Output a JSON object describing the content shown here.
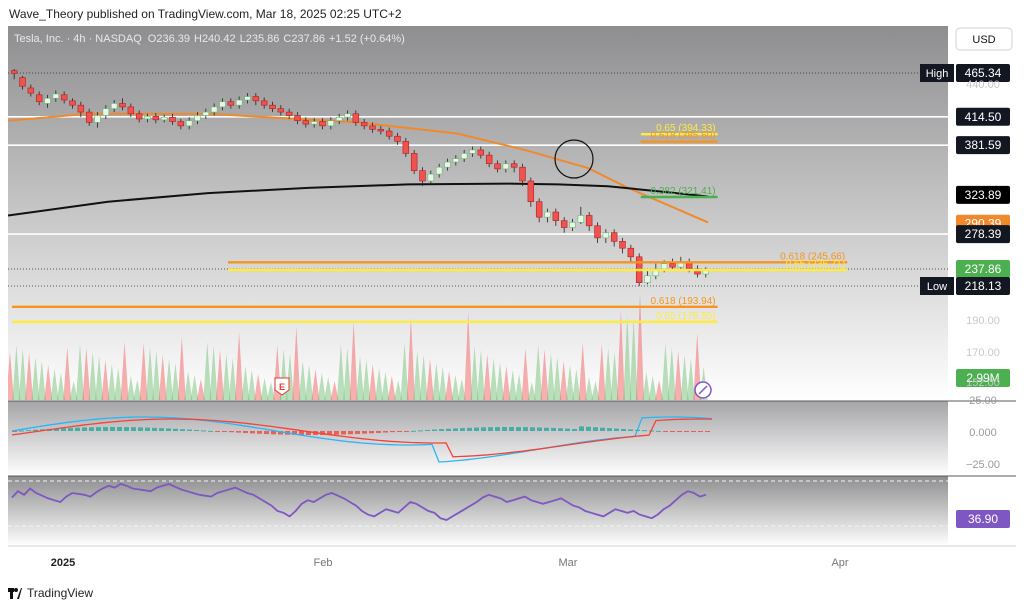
{
  "header": {
    "published": "Wave_Theory published on TradingView.com, Mar 18, 2025 02:25 UTC+2"
  },
  "legend": {
    "symbol": "Tesla, Inc. · 4h · NASDAQ",
    "open_label": "O",
    "open": "236.39",
    "high_label": "H",
    "high": "240.42",
    "low_label": "L",
    "low": "235.86",
    "close_label": "C",
    "close": "237.86",
    "change": "+1.52 (+0.64%)"
  },
  "currency_button": "USD",
  "footer": {
    "brand": "TradingView"
  },
  "colors": {
    "background_top": "#8e8e90",
    "background_bottom": "#ffffff",
    "up": "#66bb6a",
    "down": "#ef5350",
    "ma_fast": "#f0892c",
    "ma_slow": "#111111",
    "fib_orange": "#f7941d",
    "fib_yellow": "#ffeb3b",
    "rsi": "#7e57c2",
    "macd": "#f44336",
    "signal": "#29b6f6"
  },
  "chart_data": {
    "type": "candlestick",
    "title": "Tesla, Inc. · 4h · NASDAQ",
    "x_tick_labels": [
      "2025",
      "Feb",
      "Mar",
      "Apr"
    ],
    "price_axis_labels": [
      "440.00",
      "190.00",
      "170.00",
      "152.00"
    ],
    "price_badges": [
      {
        "label": "High",
        "value": "465.34",
        "style": "dark"
      },
      {
        "label": "",
        "value": "414.50",
        "style": "dark"
      },
      {
        "label": "",
        "value": "381.59",
        "style": "dark"
      },
      {
        "label": "",
        "value": "323.89",
        "style": "black"
      },
      {
        "label": "",
        "value": "290.39",
        "style": "orange"
      },
      {
        "label": "",
        "value": "278.39",
        "style": "dark"
      },
      {
        "label": "",
        "value": "237.86",
        "style": "green"
      },
      {
        "label": "Low",
        "value": "218.13",
        "style": "dark"
      }
    ],
    "horizontal_levels": [
      {
        "price": 414.5,
        "color": "#ffffff"
      },
      {
        "price": 381.59,
        "color": "#ffffff"
      },
      {
        "price": 278.39,
        "color": "#ffffff"
      }
    ],
    "fib_levels": [
      {
        "label": "0.65 (394.33)",
        "price": 394.33,
        "color": "#ffeb3b",
        "range": [
          0.655,
          0.735
        ]
      },
      {
        "label": "0.618 (385.60)",
        "price": 385.6,
        "color": "#f7941d",
        "range": [
          0.655,
          0.735
        ]
      },
      {
        "label": "0.382 (321.41)",
        "price": 321.41,
        "color": "#4caf50",
        "range": [
          0.655,
          0.735
        ]
      },
      {
        "label": "0.618 (245.66)",
        "price": 245.66,
        "color": "#f7941d",
        "range": [
          0.225,
          0.87
        ]
      },
      {
        "label": "0.65 (236.71)",
        "price": 236.71,
        "color": "#ffeb3b",
        "range": [
          0.225,
          0.87
        ]
      },
      {
        "label": "0.618 (193.94)",
        "price": 193.94,
        "color": "#f7941d",
        "range": [
          0.0,
          0.735
        ]
      },
      {
        "label": "0.65 (176.55)",
        "price": 176.55,
        "color": "#ffeb3b",
        "range": [
          0.0,
          0.735
        ]
      }
    ],
    "candles": [
      [
        468,
        465,
        470,
        458
      ],
      [
        460,
        450,
        462,
        446
      ],
      [
        448,
        442,
        452,
        438
      ],
      [
        440,
        432,
        444,
        428
      ],
      [
        430,
        436,
        440,
        425
      ],
      [
        436,
        441,
        445,
        432
      ],
      [
        440,
        434,
        444,
        430
      ],
      [
        433,
        428,
        436,
        424
      ],
      [
        428,
        420,
        432,
        414
      ],
      [
        420,
        408,
        424,
        404
      ],
      [
        408,
        416,
        420,
        402
      ],
      [
        416,
        424,
        428,
        412
      ],
      [
        424,
        430,
        434,
        420
      ],
      [
        430,
        426,
        436,
        422
      ],
      [
        426,
        418,
        430,
        414
      ],
      [
        418,
        412,
        422,
        408
      ],
      [
        412,
        415,
        418,
        408
      ],
      [
        415,
        411,
        419,
        407
      ],
      [
        411,
        414,
        417,
        408
      ],
      [
        414,
        409,
        418,
        405
      ],
      [
        409,
        404,
        412,
        400
      ],
      [
        404,
        410,
        414,
        400
      ],
      [
        410,
        416,
        420,
        406
      ],
      [
        416,
        420,
        424,
        412
      ],
      [
        420,
        426,
        430,
        416
      ],
      [
        426,
        432,
        436,
        422
      ],
      [
        432,
        428,
        436,
        424
      ],
      [
        428,
        434,
        438,
        424
      ],
      [
        434,
        438,
        442,
        430
      ],
      [
        438,
        433,
        442,
        428
      ],
      [
        433,
        428,
        437,
        424
      ],
      [
        428,
        424,
        432,
        420
      ],
      [
        424,
        420,
        428,
        416
      ],
      [
        420,
        416,
        424,
        412
      ],
      [
        416,
        410,
        420,
        406
      ],
      [
        410,
        406,
        414,
        402
      ],
      [
        406,
        409,
        413,
        402
      ],
      [
        409,
        404,
        413,
        400
      ],
      [
        404,
        410,
        414,
        400
      ],
      [
        410,
        414,
        418,
        406
      ],
      [
        414,
        418,
        422,
        410
      ],
      [
        418,
        408,
        422,
        404
      ],
      [
        408,
        404,
        412,
        400
      ],
      [
        404,
        400,
        408,
        396
      ],
      [
        400,
        398,
        404,
        394
      ],
      [
        398,
        392,
        402,
        388
      ],
      [
        392,
        386,
        396,
        382
      ],
      [
        386,
        372,
        390,
        368
      ],
      [
        372,
        352,
        376,
        348
      ],
      [
        352,
        340,
        356,
        334
      ],
      [
        340,
        348,
        352,
        336
      ],
      [
        348,
        356,
        360,
        344
      ],
      [
        356,
        362,
        366,
        352
      ],
      [
        362,
        366,
        370,
        358
      ],
      [
        366,
        372,
        376,
        362
      ],
      [
        372,
        376,
        380,
        368
      ],
      [
        376,
        370,
        380,
        366
      ],
      [
        370,
        360,
        374,
        356
      ],
      [
        360,
        354,
        364,
        350
      ],
      [
        354,
        360,
        364,
        350
      ],
      [
        360,
        356,
        364,
        350
      ],
      [
        356,
        340,
        360,
        334
      ],
      [
        340,
        316,
        344,
        310
      ],
      [
        316,
        298,
        320,
        292
      ],
      [
        298,
        304,
        308,
        292
      ],
      [
        304,
        294,
        308,
        288
      ],
      [
        294,
        286,
        298,
        280
      ],
      [
        286,
        292,
        296,
        282
      ],
      [
        292,
        300,
        310,
        290
      ],
      [
        300,
        288,
        304,
        282
      ],
      [
        288,
        274,
        292,
        268
      ],
      [
        274,
        280,
        284,
        268
      ],
      [
        280,
        270,
        284,
        264
      ],
      [
        270,
        262,
        274,
        256
      ],
      [
        262,
        252,
        266,
        246
      ],
      [
        252,
        222,
        256,
        218
      ],
      [
        222,
        230,
        236,
        220
      ],
      [
        230,
        238,
        244,
        226
      ],
      [
        238,
        244,
        248,
        234
      ],
      [
        244,
        240,
        250,
        236
      ],
      [
        240,
        246,
        252,
        236
      ],
      [
        246,
        238,
        250,
        234
      ],
      [
        238,
        232,
        242,
        228
      ],
      [
        232,
        236,
        240,
        228
      ]
    ],
    "moving_averages": [
      {
        "name": "",
        "color": "#f0892c",
        "points": [
          [
            0,
            410
          ],
          [
            0.08,
            418
          ],
          [
            0.2,
            418
          ],
          [
            0.35,
            408
          ],
          [
            0.45,
            395
          ],
          [
            0.52,
            375
          ],
          [
            0.58,
            355
          ],
          [
            0.62,
            332
          ],
          [
            0.66,
            312
          ],
          [
            0.7,
            292
          ]
        ]
      },
      {
        "name": "",
        "color": "#111111",
        "points": [
          [
            0,
            300
          ],
          [
            0.1,
            316
          ],
          [
            0.2,
            326
          ],
          [
            0.3,
            332
          ],
          [
            0.4,
            336
          ],
          [
            0.5,
            337
          ],
          [
            0.55,
            336
          ],
          [
            0.6,
            334
          ],
          [
            0.65,
            328
          ],
          [
            0.7,
            322
          ]
        ]
      }
    ],
    "volume": {
      "label": "2.99M",
      "axis_labels": [
        "190.00",
        "170.00",
        "152.00"
      ]
    },
    "macd": {
      "axis_labels": [
        "25.00",
        "0.000",
        "−25.00"
      ]
    },
    "rsi": {
      "value": "36.90",
      "points": [
        45,
        52,
        48,
        55,
        50,
        47,
        44,
        42,
        40,
        46,
        50,
        49,
        48,
        46,
        51,
        55,
        58,
        56,
        60,
        58,
        55,
        54,
        53,
        52,
        56,
        58,
        60,
        57,
        54,
        52,
        50,
        48,
        47,
        46,
        50,
        52,
        54,
        56,
        53,
        50,
        48,
        44,
        40,
        36,
        30,
        28,
        24,
        30,
        38,
        42,
        40,
        44,
        48,
        50,
        47,
        44,
        40,
        36,
        30,
        26,
        24,
        28,
        32,
        30,
        28,
        34,
        40,
        38,
        34,
        30,
        28,
        22,
        20,
        24,
        28,
        32,
        36,
        40,
        45,
        48,
        46,
        44,
        40,
        42,
        44,
        46,
        42,
        40,
        38,
        40,
        42,
        44,
        40,
        36,
        34,
        30,
        28,
        26,
        24,
        28,
        32,
        30,
        28,
        30,
        26,
        24,
        22,
        26,
        32,
        36,
        42,
        48,
        52,
        50,
        46,
        48
      ]
    }
  }
}
